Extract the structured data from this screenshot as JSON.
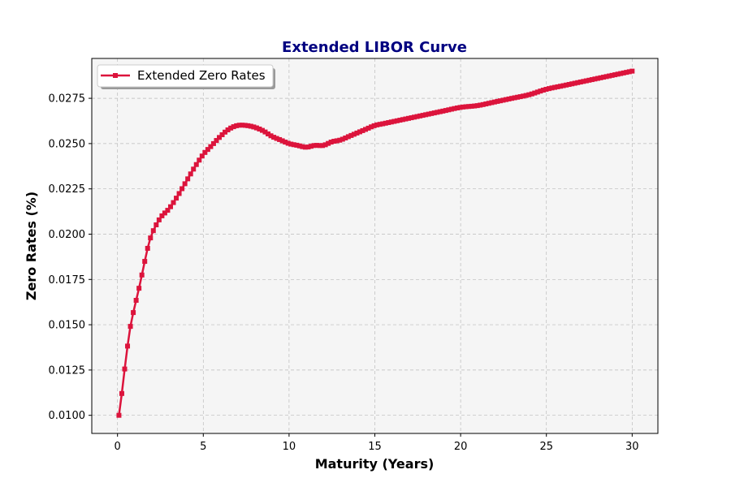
{
  "chart_data": {
    "type": "line",
    "title": "Extended LIBOR Curve",
    "xlabel": "Maturity (Years)",
    "ylabel": "Zero Rates (%)",
    "xlim": [
      -1.5,
      31.5
    ],
    "ylim": [
      0.009,
      0.0297
    ],
    "x_ticks": [
      0,
      5,
      10,
      15,
      20,
      25,
      30
    ],
    "y_ticks": [
      0.01,
      0.0125,
      0.015,
      0.0175,
      0.02,
      0.0225,
      0.025,
      0.0275
    ],
    "x_tick_labels": [
      "0",
      "5",
      "10",
      "15",
      "20",
      "25",
      "30"
    ],
    "y_tick_labels": [
      "0.0100",
      "0.0125",
      "0.0150",
      "0.0175",
      "0.0200",
      "0.0225",
      "0.0250",
      "0.0275"
    ],
    "grid": true,
    "legend_position": "upper-left",
    "series": [
      {
        "name": "Extended Zero Rates",
        "color": "#DC143C",
        "marker": "square",
        "x_start": 0.0833,
        "x_end": 30,
        "point_count": 180,
        "curve_knots": [
          [
            0.0833,
            0.01
          ],
          [
            0.25,
            0.0112
          ],
          [
            0.5,
            0.0132
          ],
          [
            0.75,
            0.0149
          ],
          [
            1.0,
            0.016
          ],
          [
            1.25,
            0.017
          ],
          [
            1.5,
            0.0181
          ],
          [
            1.75,
            0.0192
          ],
          [
            2.0,
            0.02
          ],
          [
            2.5,
            0.0209
          ],
          [
            3.0,
            0.0214
          ],
          [
            3.5,
            0.0221
          ],
          [
            4.0,
            0.0229
          ],
          [
            4.5,
            0.0237
          ],
          [
            5.0,
            0.0244
          ],
          [
            5.5,
            0.0249
          ],
          [
            6.0,
            0.0254
          ],
          [
            6.5,
            0.0258
          ],
          [
            7.0,
            0.026
          ],
          [
            7.5,
            0.026
          ],
          [
            8.0,
            0.0259
          ],
          [
            8.5,
            0.0257
          ],
          [
            9.0,
            0.0254
          ],
          [
            9.5,
            0.0252
          ],
          [
            10.0,
            0.025
          ],
          [
            10.5,
            0.0249
          ],
          [
            11.0,
            0.0248
          ],
          [
            11.5,
            0.0249
          ],
          [
            12.0,
            0.0249
          ],
          [
            12.5,
            0.0251
          ],
          [
            13.0,
            0.0252
          ],
          [
            13.5,
            0.0254
          ],
          [
            14.0,
            0.0256
          ],
          [
            14.5,
            0.0258
          ],
          [
            15.0,
            0.026
          ],
          [
            15.5,
            0.0261
          ],
          [
            16.0,
            0.0262
          ],
          [
            17.0,
            0.0264
          ],
          [
            18.0,
            0.0266
          ],
          [
            19.0,
            0.0268
          ],
          [
            20.0,
            0.027
          ],
          [
            21.0,
            0.0271
          ],
          [
            22.0,
            0.0273
          ],
          [
            23.0,
            0.0275
          ],
          [
            24.0,
            0.0277
          ],
          [
            25.0,
            0.028
          ],
          [
            26.0,
            0.0282
          ],
          [
            27.0,
            0.0284
          ],
          [
            28.0,
            0.0286
          ],
          [
            29.0,
            0.0288
          ],
          [
            30.0,
            0.029
          ]
        ]
      }
    ]
  },
  "colors": {
    "title": "#000080",
    "plot_background": "#F5F5F5",
    "grid": "#BBBBBB",
    "series": "#DC143C"
  }
}
